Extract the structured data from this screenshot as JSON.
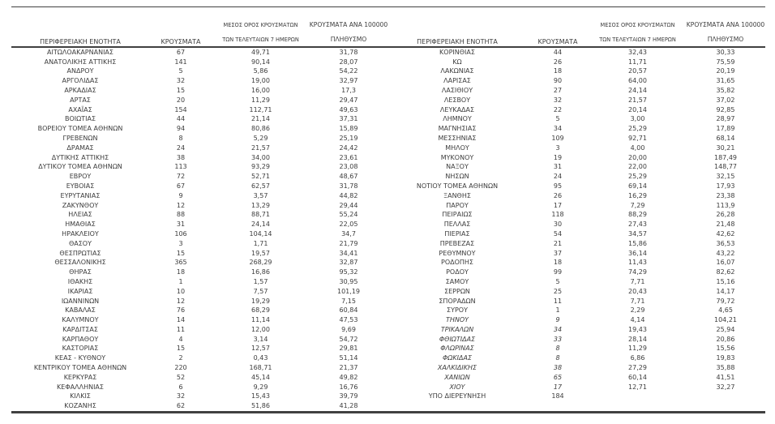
{
  "colors": {
    "text": "#3c3c3c",
    "rule": "#404040",
    "background": "#ffffff"
  },
  "table": {
    "headers": {
      "region": "ΠΕΡΙΦΕΡΕΙΑΚΗ ΕΝΟΤΗΤΑ",
      "cases": "ΚΡΟΥΣΜΑΤΑ",
      "avg7_line1": "ΜΕΣΟΣ ΟΡΟΣ ΚΡΟΥΣΜΑΤΩΝ",
      "avg7_line2": "ΤΩΝ ΤΕΛΕΥΤΑΙΩΝ 7 ΗΜΕΡΩΝ",
      "per100k_line1": "ΚΡΟΥΣΜΑΤΑ ΑΝΑ 100000",
      "per100k_line2": "ΠΛΗΘΥΣΜΟ"
    },
    "left_rows": [
      {
        "region": "ΑΙΤΩΛΟΑΚΑΡΝΑΝΙΑΣ",
        "cases": "67",
        "avg7": "49,71",
        "per100k": "31,78",
        "italic": false
      },
      {
        "region": "ΑΝΑΤΟΛΙΚΗΣ ΑΤΤΙΚΗΣ",
        "cases": "141",
        "avg7": "90,14",
        "per100k": "28,07",
        "italic": false
      },
      {
        "region": "ΑΝΔΡΟΥ",
        "cases": "5",
        "avg7": "5,86",
        "per100k": "54,22",
        "italic": false
      },
      {
        "region": "ΑΡΓΟΛΙΔΑΣ",
        "cases": "32",
        "avg7": "19,00",
        "per100k": "32,97",
        "italic": false
      },
      {
        "region": "ΑΡΚΑΔΙΑΣ",
        "cases": "15",
        "avg7": "16,00",
        "per100k": "17,3",
        "italic": false
      },
      {
        "region": "ΑΡΤΑΣ",
        "cases": "20",
        "avg7": "11,29",
        "per100k": "29,47",
        "italic": false
      },
      {
        "region": "ΑΧΑΪΑΣ",
        "cases": "154",
        "avg7": "112,71",
        "per100k": "49,63",
        "italic": false
      },
      {
        "region": "ΒΟΙΩΤΙΑΣ",
        "cases": "44",
        "avg7": "21,14",
        "per100k": "37,31",
        "italic": false
      },
      {
        "region": "ΒΟΡΕΙΟΥ ΤΟΜΕΑ ΑΘΗΝΩΝ",
        "cases": "94",
        "avg7": "80,86",
        "per100k": "15,89",
        "italic": false
      },
      {
        "region": "ΓΡΕΒΕΝΩΝ",
        "cases": "8",
        "avg7": "5,29",
        "per100k": "25,19",
        "italic": false
      },
      {
        "region": "ΔΡΑΜΑΣ",
        "cases": "24",
        "avg7": "21,57",
        "per100k": "24,42",
        "italic": false
      },
      {
        "region": "ΔΥΤΙΚΗΣ ΑΤΤΙΚΗΣ",
        "cases": "38",
        "avg7": "34,00",
        "per100k": "23,61",
        "italic": false
      },
      {
        "region": "ΔΥΤΙΚΟΥ ΤΟΜΕΑ ΑΘΗΝΩΝ",
        "cases": "113",
        "avg7": "93,29",
        "per100k": "23,08",
        "italic": false
      },
      {
        "region": "ΕΒΡΟΥ",
        "cases": "72",
        "avg7": "52,71",
        "per100k": "48,67",
        "italic": false
      },
      {
        "region": "ΕΥΒΟΙΑΣ",
        "cases": "67",
        "avg7": "62,57",
        "per100k": "31,78",
        "italic": false
      },
      {
        "region": "ΕΥΡΥΤΑΝΙΑΣ",
        "cases": "9",
        "avg7": "3,57",
        "per100k": "44,82",
        "italic": false
      },
      {
        "region": "ΖΑΚΥΝΘΟΥ",
        "cases": "12",
        "avg7": "13,29",
        "per100k": "29,44",
        "italic": false
      },
      {
        "region": "ΗΛΕΙΑΣ",
        "cases": "88",
        "avg7": "88,71",
        "per100k": "55,24",
        "italic": false
      },
      {
        "region": "ΗΜΑΘΙΑΣ",
        "cases": "31",
        "avg7": "24,14",
        "per100k": "22,05",
        "italic": false
      },
      {
        "region": "ΗΡΑΚΛΕΙΟΥ",
        "cases": "106",
        "avg7": "104,14",
        "per100k": "34,7",
        "italic": false
      },
      {
        "region": "ΘΑΣΟΥ",
        "cases": "3",
        "avg7": "1,71",
        "per100k": "21,79",
        "italic": false
      },
      {
        "region": "ΘΕΣΠΡΩΤΙΑΣ",
        "cases": "15",
        "avg7": "19,57",
        "per100k": "34,41",
        "italic": false
      },
      {
        "region": "ΘΕΣΣΑΛΟΝΙΚΗΣ",
        "cases": "365",
        "avg7": "268,29",
        "per100k": "32,87",
        "italic": false
      },
      {
        "region": "ΘΗΡΑΣ",
        "cases": "18",
        "avg7": "16,86",
        "per100k": "95,32",
        "italic": false
      },
      {
        "region": "ΙΘΑΚΗΣ",
        "cases": "1",
        "avg7": "1,57",
        "per100k": "30,95",
        "italic": false
      },
      {
        "region": "ΙΚΑΡΙΑΣ",
        "cases": "10",
        "avg7": "7,57",
        "per100k": "101,19",
        "italic": false
      },
      {
        "region": "ΙΩΑΝΝΙΝΩΝ",
        "cases": "12",
        "avg7": "19,29",
        "per100k": "7,15",
        "italic": false
      },
      {
        "region": "ΚΑΒΑΛΑΣ",
        "cases": "76",
        "avg7": "68,29",
        "per100k": "60,84",
        "italic": false
      },
      {
        "region": "ΚΑΛΥΜΝΟΥ",
        "cases": "14",
        "avg7": "11,14",
        "per100k": "47,53",
        "italic": false
      },
      {
        "region": "ΚΑΡΔΙΤΣΑΣ",
        "cases": "11",
        "avg7": "12,00",
        "per100k": "9,69",
        "italic": false
      },
      {
        "region": "ΚΑΡΠΑΘΟΥ",
        "cases": "4",
        "avg7": "3,14",
        "per100k": "54,72",
        "italic": false
      },
      {
        "region": "ΚΑΣΤΟΡΙΑΣ",
        "cases": "15",
        "avg7": "12,57",
        "per100k": "29,81",
        "italic": false
      },
      {
        "region": "ΚΕΑΣ - ΚΥΘΝΟΥ",
        "cases": "2",
        "avg7": "0,43",
        "per100k": "51,14",
        "italic": false
      },
      {
        "region": "ΚΕΝΤΡΙΚΟΥ ΤΟΜΕΑ ΑΘΗΝΩΝ",
        "cases": "220",
        "avg7": "168,71",
        "per100k": "21,37",
        "italic": false
      },
      {
        "region": "ΚΕΡΚΥΡΑΣ",
        "cases": "52",
        "avg7": "45,14",
        "per100k": "49,82",
        "italic": false
      },
      {
        "region": "ΚΕΦΑΛΛΗΝΙΑΣ",
        "cases": "6",
        "avg7": "9,29",
        "per100k": "16,76",
        "italic": false
      },
      {
        "region": "ΚΙΛΚΙΣ",
        "cases": "32",
        "avg7": "15,43",
        "per100k": "39,79",
        "italic": false
      },
      {
        "region": "ΚΟΖΑΝΗΣ",
        "cases": "62",
        "avg7": "51,86",
        "per100k": "41,28",
        "italic": false
      }
    ],
    "right_rows": [
      {
        "region": "ΚΟΡΙΝΘΙΑΣ",
        "cases": "44",
        "avg7": "32,43",
        "per100k": "30,33",
        "italic": false
      },
      {
        "region": "ΚΩ",
        "cases": "26",
        "avg7": "11,71",
        "per100k": "75,59",
        "italic": false
      },
      {
        "region": "ΛΑΚΩΝΙΑΣ",
        "cases": "18",
        "avg7": "20,57",
        "per100k": "20,19",
        "italic": false
      },
      {
        "region": "ΛΑΡΙΣΑΣ",
        "cases": "90",
        "avg7": "64,00",
        "per100k": "31,65",
        "italic": false
      },
      {
        "region": "ΛΑΣΙΘΙΟΥ",
        "cases": "27",
        "avg7": "24,14",
        "per100k": "35,82",
        "italic": false
      },
      {
        "region": "ΛΕΣΒΟΥ",
        "cases": "32",
        "avg7": "21,57",
        "per100k": "37,02",
        "italic": false
      },
      {
        "region": "ΛΕΥΚΑΔΑΣ",
        "cases": "22",
        "avg7": "20,14",
        "per100k": "92,85",
        "italic": false
      },
      {
        "region": "ΛΗΜΝΟΥ",
        "cases": "5",
        "avg7": "3,00",
        "per100k": "28,97",
        "italic": false
      },
      {
        "region": "ΜΑΓΝΗΣΙΑΣ",
        "cases": "34",
        "avg7": "25,29",
        "per100k": "17,89",
        "italic": false
      },
      {
        "region": "ΜΕΣΣΗΝΙΑΣ",
        "cases": "109",
        "avg7": "92,71",
        "per100k": "68,14",
        "italic": false
      },
      {
        "region": "ΜΗΛΟΥ",
        "cases": "3",
        "avg7": "4,00",
        "per100k": "30,21",
        "italic": false
      },
      {
        "region": "ΜΥΚΟΝΟΥ",
        "cases": "19",
        "avg7": "20,00",
        "per100k": "187,49",
        "italic": false
      },
      {
        "region": "ΝΑΞΟΥ",
        "cases": "31",
        "avg7": "22,00",
        "per100k": "148,77",
        "italic": false
      },
      {
        "region": "ΝΗΣΩΝ",
        "cases": "24",
        "avg7": "25,29",
        "per100k": "32,15",
        "italic": false
      },
      {
        "region": "ΝΟΤΙΟΥ ΤΟΜΕΑ ΑΘΗΝΩΝ",
        "cases": "95",
        "avg7": "69,14",
        "per100k": "17,93",
        "italic": false
      },
      {
        "region": "ΞΑΝΘΗΣ",
        "cases": "26",
        "avg7": "16,29",
        "per100k": "23,38",
        "italic": false
      },
      {
        "region": "ΠΑΡΟΥ",
        "cases": "17",
        "avg7": "7,29",
        "per100k": "113,9",
        "italic": false
      },
      {
        "region": "ΠΕΙΡΑΙΩΣ",
        "cases": "118",
        "avg7": "88,29",
        "per100k": "26,28",
        "italic": false
      },
      {
        "region": "ΠΕΛΛΑΣ",
        "cases": "30",
        "avg7": "27,43",
        "per100k": "21,48",
        "italic": false
      },
      {
        "region": "ΠΙΕΡΙΑΣ",
        "cases": "54",
        "avg7": "34,57",
        "per100k": "42,62",
        "italic": false
      },
      {
        "region": "ΠΡΕΒΕΖΑΣ",
        "cases": "21",
        "avg7": "15,86",
        "per100k": "36,53",
        "italic": false
      },
      {
        "region": "ΡΕΘΥΜΝΟΥ",
        "cases": "37",
        "avg7": "36,14",
        "per100k": "43,22",
        "italic": false
      },
      {
        "region": "ΡΟΔΟΠΗΣ",
        "cases": "18",
        "avg7": "11,43",
        "per100k": "16,07",
        "italic": false
      },
      {
        "region": "ΡΟΔΟΥ",
        "cases": "99",
        "avg7": "74,29",
        "per100k": "82,62",
        "italic": false
      },
      {
        "region": "ΣΑΜΟΥ",
        "cases": "5",
        "avg7": "7,71",
        "per100k": "15,16",
        "italic": false
      },
      {
        "region": "ΣΕΡΡΩΝ",
        "cases": "25",
        "avg7": "20,43",
        "per100k": "14,17",
        "italic": false
      },
      {
        "region": "ΣΠΟΡΑΔΩΝ",
        "cases": "11",
        "avg7": "7,71",
        "per100k": "79,72",
        "italic": false
      },
      {
        "region": "ΣΥΡΟΥ",
        "cases": "1",
        "avg7": "2,29",
        "per100k": "4,65",
        "italic": false
      },
      {
        "region": "ΤΗΝΟΥ",
        "cases": "9",
        "avg7": "4,14",
        "per100k": "104,21",
        "italic": true
      },
      {
        "region": "ΤΡΙΚΑΛΩΝ",
        "cases": "34",
        "avg7": "19,43",
        "per100k": "25,94",
        "italic": true
      },
      {
        "region": "ΦΘΙΩΤΙΔΑΣ",
        "cases": "33",
        "avg7": "28,14",
        "per100k": "20,86",
        "italic": true
      },
      {
        "region": "ΦΛΩΡΙΝΑΣ",
        "cases": "8",
        "avg7": "11,29",
        "per100k": "15,56",
        "italic": true
      },
      {
        "region": "ΦΩΚΙΔΑΣ",
        "cases": "8",
        "avg7": "6,86",
        "per100k": "19,83",
        "italic": true
      },
      {
        "region": "ΧΑΛΚΙΔΙΚΗΣ",
        "cases": "38",
        "avg7": "27,29",
        "per100k": "35,88",
        "italic": true
      },
      {
        "region": "ΧΑΝΙΩΝ",
        "cases": "65",
        "avg7": "60,14",
        "per100k": "41,51",
        "italic": true
      },
      {
        "region": "ΧΙΟΥ",
        "cases": "17",
        "avg7": "12,71",
        "per100k": "32,27",
        "italic": true
      },
      {
        "region": "ΥΠΟ ΔΙΕΡΕΥΝΗΣΗ",
        "cases": "184",
        "avg7": "",
        "per100k": "",
        "italic": false
      }
    ]
  }
}
